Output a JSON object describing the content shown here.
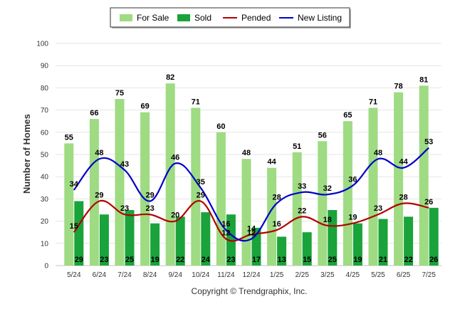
{
  "chart_data": {
    "type": "bar",
    "categories": [
      "5/24",
      "6/24",
      "7/24",
      "8/24",
      "9/24",
      "10/24",
      "11/24",
      "12/24",
      "1/25",
      "2/25",
      "3/25",
      "4/25",
      "5/25",
      "6/25",
      "7/25"
    ],
    "series": [
      {
        "name": "For Sale",
        "type": "bar",
        "color": "#9edb82",
        "values": [
          55,
          66,
          75,
          69,
          82,
          71,
          60,
          48,
          44,
          51,
          56,
          65,
          71,
          78,
          81
        ]
      },
      {
        "name": "Sold",
        "type": "bar",
        "color": "#1aa33a",
        "values": [
          29,
          23,
          25,
          19,
          22,
          24,
          23,
          17,
          13,
          15,
          25,
          19,
          21,
          22,
          26
        ]
      },
      {
        "name": "Pended",
        "type": "line",
        "color": "#b30000",
        "values": [
          15,
          29,
          23,
          23,
          20,
          29,
          12,
          14,
          16,
          22,
          18,
          19,
          23,
          28,
          26
        ]
      },
      {
        "name": "New Listing",
        "type": "line",
        "color": "#0000cc",
        "values": [
          34,
          48,
          43,
          29,
          46,
          35,
          16,
          12,
          28,
          33,
          32,
          36,
          48,
          44,
          53
        ]
      }
    ],
    "ylabel": "Number of Homes",
    "xlabel": "",
    "ylim": [
      0,
      100
    ],
    "yticks": [
      0,
      10,
      20,
      30,
      40,
      50,
      60,
      70,
      80,
      90,
      100
    ],
    "grid": true,
    "legend_position": "top-center"
  },
  "copyright": "Copyright © Trendgraphix, Inc."
}
